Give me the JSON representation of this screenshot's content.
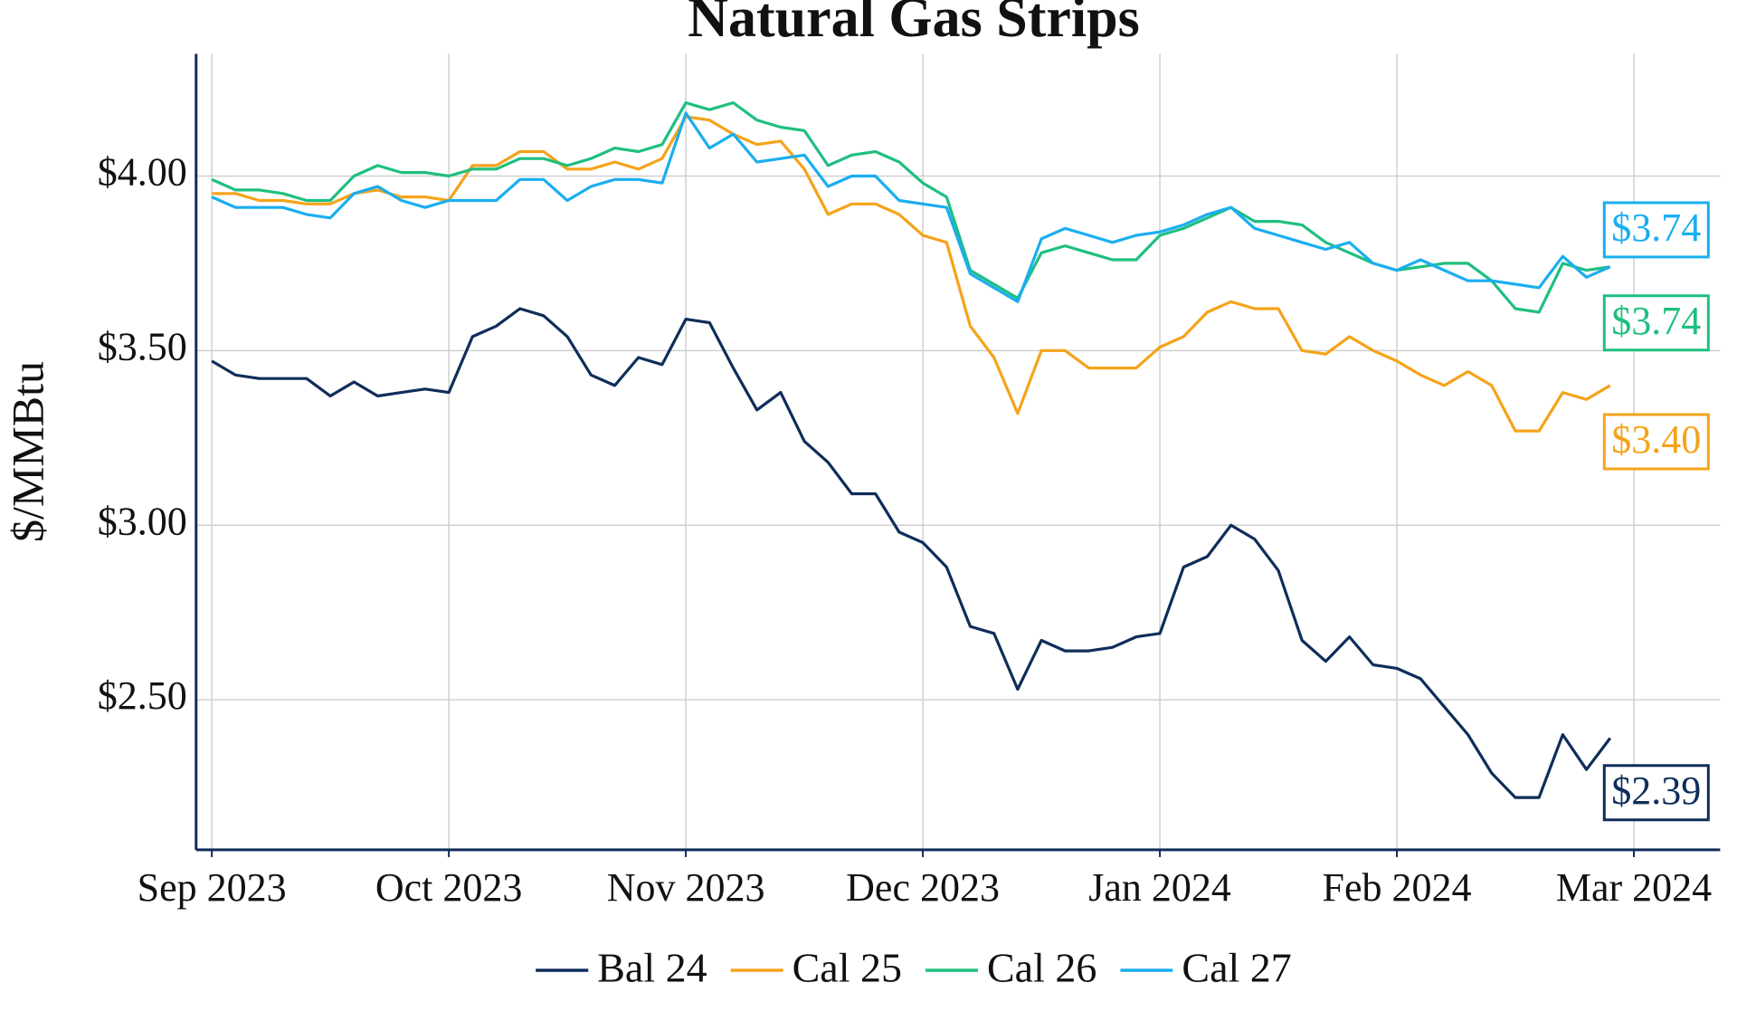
{
  "chart_data": {
    "type": "line",
    "title": "Natural Gas Strips",
    "y_label": "$/MMBtu",
    "categories": [
      "Sep 2023",
      null,
      null,
      null,
      null,
      null,
      null,
      null,
      null,
      null,
      "Oct 2023",
      null,
      null,
      null,
      null,
      null,
      null,
      null,
      null,
      null,
      "Nov 2023",
      null,
      null,
      null,
      null,
      null,
      null,
      null,
      null,
      null,
      "Dec 2023",
      null,
      null,
      null,
      null,
      null,
      null,
      null,
      null,
      null,
      "Jan 2024",
      null,
      null,
      null,
      null,
      null,
      null,
      null,
      null,
      null,
      "Feb 2024",
      null,
      null,
      null,
      null,
      null,
      null,
      null,
      null,
      null,
      "Mar 2024"
    ],
    "ylim": [
      2.07,
      4.35
    ],
    "yticks": [
      {
        "value": 2.5,
        "label": "$2.50"
      },
      {
        "value": 3,
        "label": "$3.00"
      },
      {
        "value": 3.5,
        "label": "$3.50"
      },
      {
        "value": 4,
        "label": "$4.00"
      }
    ],
    "grid": true,
    "legend": "bottom",
    "series": [
      {
        "name": "Bal 24",
        "color": "#0f2d5a",
        "end_label": "$2.39",
        "values": [
          3.47,
          3.43,
          3.42,
          3.42,
          3.42,
          3.37,
          3.41,
          3.37,
          3.38,
          3.39,
          3.38,
          3.54,
          3.57,
          3.62,
          3.6,
          3.54,
          3.43,
          3.4,
          3.48,
          3.46,
          3.59,
          3.58,
          3.45,
          3.33,
          3.38,
          3.24,
          3.18,
          3.09,
          3.09,
          2.98,
          2.95,
          2.88,
          2.71,
          2.69,
          2.53,
          2.67,
          2.64,
          2.64,
          2.65,
          2.68,
          2.69,
          2.88,
          2.91,
          3.0,
          2.96,
          2.87,
          2.67,
          2.61,
          2.68,
          2.6,
          2.59,
          2.56,
          2.48,
          2.4,
          2.29,
          2.22,
          2.22,
          2.4,
          2.3,
          2.39,
          null
        ]
      },
      {
        "name": "Cal 25",
        "color": "#f5a31a",
        "end_label": "$3.40",
        "values": [
          3.95,
          3.95,
          3.93,
          3.93,
          3.92,
          3.92,
          3.95,
          3.96,
          3.94,
          3.94,
          3.93,
          4.03,
          4.03,
          4.07,
          4.07,
          4.02,
          4.02,
          4.04,
          4.02,
          4.05,
          4.17,
          4.16,
          4.12,
          4.09,
          4.1,
          4.02,
          3.89,
          3.92,
          3.92,
          3.89,
          3.83,
          3.81,
          3.57,
          3.48,
          3.32,
          3.5,
          3.5,
          3.45,
          3.45,
          3.45,
          3.51,
          3.54,
          3.61,
          3.64,
          3.62,
          3.62,
          3.5,
          3.49,
          3.54,
          3.5,
          3.47,
          3.43,
          3.4,
          3.44,
          3.4,
          3.27,
          3.27,
          3.38,
          3.36,
          3.4,
          null
        ]
      },
      {
        "name": "Cal 26",
        "color": "#1fbf7f",
        "end_label": "$3.74",
        "values": [
          3.99,
          3.96,
          3.96,
          3.95,
          3.93,
          3.93,
          4.0,
          4.03,
          4.01,
          4.01,
          4.0,
          4.02,
          4.02,
          4.05,
          4.05,
          4.03,
          4.05,
          4.08,
          4.07,
          4.09,
          4.21,
          4.19,
          4.21,
          4.16,
          4.14,
          4.13,
          4.03,
          4.06,
          4.07,
          4.04,
          3.98,
          3.94,
          3.73,
          3.69,
          3.65,
          3.78,
          3.8,
          3.78,
          3.76,
          3.76,
          3.83,
          3.85,
          3.88,
          3.91,
          3.87,
          3.87,
          3.86,
          3.81,
          3.78,
          3.75,
          3.73,
          3.74,
          3.75,
          3.75,
          3.7,
          3.62,
          3.61,
          3.75,
          3.73,
          3.74,
          null
        ]
      },
      {
        "name": "Cal 27",
        "color": "#1aaef0",
        "end_label": "$3.74",
        "values": [
          3.94,
          3.91,
          3.91,
          3.91,
          3.89,
          3.88,
          3.95,
          3.97,
          3.93,
          3.91,
          3.93,
          3.93,
          3.93,
          3.99,
          3.99,
          3.93,
          3.97,
          3.99,
          3.99,
          3.98,
          4.18,
          4.08,
          4.12,
          4.04,
          4.05,
          4.06,
          3.97,
          4.0,
          4.0,
          3.93,
          3.92,
          3.91,
          3.72,
          3.68,
          3.64,
          3.82,
          3.85,
          3.83,
          3.81,
          3.83,
          3.84,
          3.86,
          3.89,
          3.91,
          3.85,
          3.83,
          3.81,
          3.79,
          3.81,
          3.75,
          3.73,
          3.76,
          3.73,
          3.7,
          3.7,
          3.69,
          3.68,
          3.77,
          3.71,
          3.74,
          null
        ]
      }
    ]
  }
}
